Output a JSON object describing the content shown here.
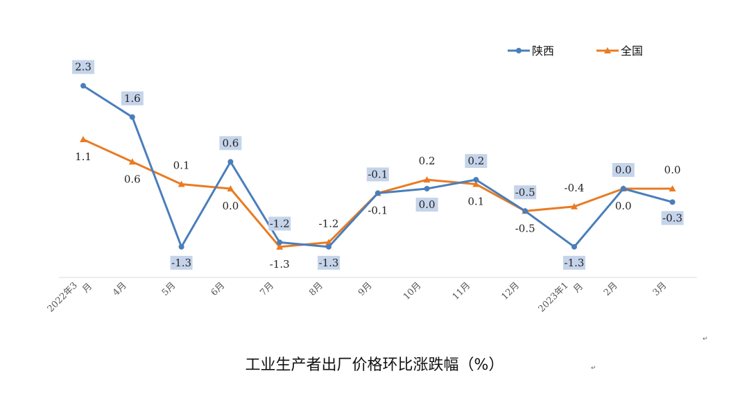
{
  "chart_data": {
    "type": "line",
    "title": "工业生产者出厂价格环比涨跌幅（%）",
    "categories": [
      "2022年3月",
      "4月",
      "5月",
      "6月",
      "7月",
      "8月",
      "9月",
      "10月",
      "11月",
      "12月",
      "2023年1月",
      "2月",
      "3月"
    ],
    "series": [
      {
        "name": "陕西",
        "color": "#4a7ebb",
        "marker": "circle",
        "label_position": "highlighted",
        "values": [
          2.3,
          1.6,
          -1.3,
          0.6,
          -1.2,
          -1.3,
          -0.1,
          0.0,
          0.2,
          -0.5,
          -1.3,
          0.0,
          -0.3
        ],
        "labels": [
          "2.3",
          "1.6",
          "-1.3",
          "0.6",
          "-1.2",
          "-1.3",
          "-0.1",
          "0.0",
          "0.2",
          "-0.5",
          "-1.3",
          "0.0",
          "-0.3"
        ]
      },
      {
        "name": "全国",
        "color": "#e97b23",
        "marker": "triangle",
        "label_position": "plain",
        "values": [
          1.1,
          0.6,
          0.1,
          0.0,
          -1.3,
          -1.2,
          -0.1,
          0.2,
          0.1,
          -0.5,
          -0.4,
          0.0,
          0.0
        ],
        "labels": [
          "1.1",
          "0.6",
          "0.1",
          "0.0",
          "-1.3",
          "-1.2",
          "-0.1",
          "0.2",
          "0.1",
          "-0.5",
          "-0.4",
          "0.0",
          "0.0"
        ]
      }
    ],
    "legend_position": "top-right",
    "grid": false
  },
  "marks": {
    "return_mark_1": "↵",
    "return_mark_2": "↵"
  }
}
